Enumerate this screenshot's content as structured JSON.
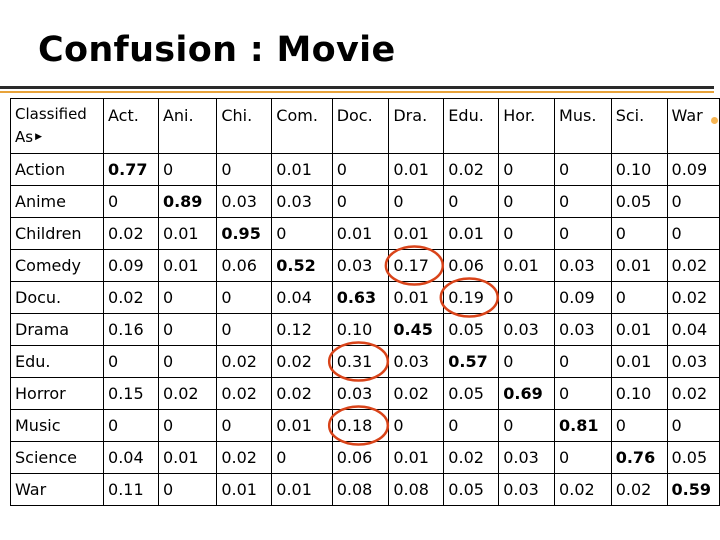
{
  "slide": {
    "title": "Confusion : Movie"
  },
  "colors": {
    "text": "#000000",
    "circle": "#d9441a",
    "rule": "#2a2a2a",
    "accent": "#e8a33a"
  },
  "matrix": {
    "corner_label_line1": "Classified",
    "corner_label_line2": "As",
    "corner_icon": "right-triangle-icon",
    "columns": [
      "Act.",
      "Ani.",
      "Chi.",
      "Com.",
      "Doc.",
      "Dra.",
      "Edu.",
      "Hor.",
      "Mus.",
      "Sci.",
      "War"
    ],
    "rows": [
      {
        "label": "Action",
        "values": [
          "0.77",
          "0",
          "0",
          "0.01",
          "0",
          "0.01",
          "0.02",
          "0",
          "0",
          "0.10",
          "0.09"
        ]
      },
      {
        "label": "Anime",
        "values": [
          "0",
          "0.89",
          "0.03",
          "0.03",
          "0",
          "0",
          "0",
          "0",
          "0",
          "0.05",
          "0"
        ]
      },
      {
        "label": "Children",
        "values": [
          "0.02",
          "0.01",
          "0.95",
          "0",
          "0.01",
          "0.01",
          "0.01",
          "0",
          "0",
          "0",
          "0"
        ]
      },
      {
        "label": "Comedy",
        "values": [
          "0.09",
          "0.01",
          "0.06",
          "0.52",
          "0.03",
          "0.17",
          "0.06",
          "0.01",
          "0.03",
          "0.01",
          "0.02"
        ]
      },
      {
        "label": "Docu.",
        "values": [
          "0.02",
          "0",
          "0",
          "0.04",
          "0.63",
          "0.01",
          "0.19",
          "0",
          "0.09",
          "0",
          "0.02"
        ]
      },
      {
        "label": "Drama",
        "values": [
          "0.16",
          "0",
          "0",
          "0.12",
          "0.10",
          "0.45",
          "0.05",
          "0.03",
          "0.03",
          "0.01",
          "0.04"
        ]
      },
      {
        "label": "Edu.",
        "values": [
          "0",
          "0",
          "0.02",
          "0.02",
          "0.31",
          "0.03",
          "0.57",
          "0",
          "0",
          "0.01",
          "0.03"
        ]
      },
      {
        "label": "Horror",
        "values": [
          "0.15",
          "0.02",
          "0.02",
          "0.02",
          "0.03",
          "0.02",
          "0.05",
          "0.69",
          "0",
          "0.10",
          "0.02"
        ]
      },
      {
        "label": "Music",
        "values": [
          "0",
          "0",
          "0",
          "0.01",
          "0.18",
          "0",
          "0",
          "0",
          "0.81",
          "0",
          "0"
        ]
      },
      {
        "label": "Science",
        "values": [
          "0.04",
          "0.01",
          "0.02",
          "0",
          "0.06",
          "0.01",
          "0.02",
          "0.03",
          "0",
          "0.76",
          "0.05"
        ]
      },
      {
        "label": "War",
        "values": [
          "0.11",
          "0",
          "0.01",
          "0.01",
          "0.08",
          "0.08",
          "0.05",
          "0.03",
          "0.02",
          "0.02",
          "0.59"
        ]
      }
    ],
    "circled_cells": [
      {
        "row": 3,
        "col": 5
      },
      {
        "row": 4,
        "col": 6
      },
      {
        "row": 6,
        "col": 4
      },
      {
        "row": 8,
        "col": 4
      }
    ]
  }
}
